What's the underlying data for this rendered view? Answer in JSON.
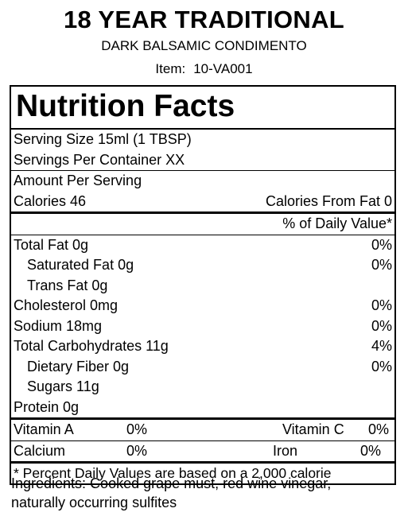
{
  "header": {
    "title": "18 YEAR TRADITIONAL",
    "subtitle": "DARK BALSAMIC CONDIMENTO",
    "item_label": "Item:",
    "item_value": "10-VA001"
  },
  "label": {
    "heading": "Nutrition Facts",
    "serving_size": "Serving Size  15ml (1 TBSP)",
    "servings_per_container": "Servings Per Container  XX",
    "amount_per_serving": "Amount Per Serving",
    "calories": "Calories 46",
    "calories_from_fat": "Calories From Fat 0",
    "daily_value_header": "% of Daily Value*",
    "nutrients": [
      {
        "name": "Total Fat  0g",
        "dv": "0%"
      },
      {
        "name": "Saturated Fat  0g",
        "dv": "0%"
      },
      {
        "name": "Trans Fat  0g",
        "dv": ""
      },
      {
        "name": "Cholesterol  0mg",
        "dv": "0%"
      },
      {
        "name": "Sodium  18mg",
        "dv": "0%"
      },
      {
        "name": "Total Carbohydrates  11g",
        "dv": "4%"
      },
      {
        "name": "Dietary Fiber  0g",
        "dv": "0%"
      },
      {
        "name": "Sugars  11g",
        "dv": ""
      },
      {
        "name": "Protein  0g",
        "dv": ""
      }
    ],
    "vitamins": [
      {
        "name": "Vitamin A",
        "dv": "0%",
        "name2": "Vitamin C",
        "dv2": "0%"
      },
      {
        "name": "Calcium",
        "dv": "0%",
        "name2": "Iron",
        "dv2": "0%"
      }
    ],
    "footnote": "* Percent Daily Values are based on a 2,000 calorie"
  },
  "ingredients": {
    "line1": "Ingredients:  Cooked grape must, red wine vinegar,",
    "line2": "naturally occurring sulfites"
  }
}
